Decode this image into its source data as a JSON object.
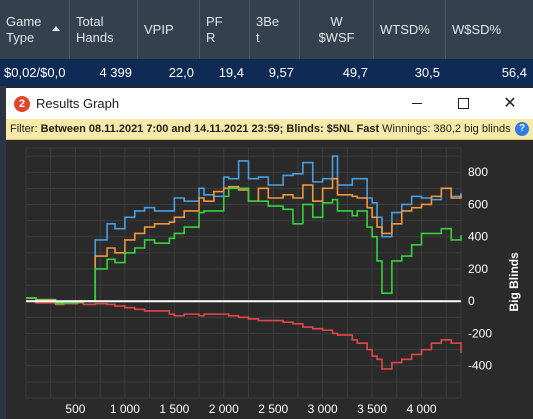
{
  "stats_table": {
    "headers": [
      "Game\nType",
      "Total\nHands",
      "VPIP",
      "PF\nR",
      "3Be\nt",
      "W\n$WSF",
      "WTSD%",
      "W$SD%"
    ],
    "row": [
      "$0,02/$0,0",
      "4 399",
      "22,0",
      "19,4",
      "9,57",
      "49,7",
      "30,5",
      "56,4"
    ]
  },
  "window": {
    "title": "Results Graph",
    "icon_letter": "2",
    "close_glyph": "✕"
  },
  "filter": {
    "label": "Filter:",
    "text": "Between 08.11.2021 7:00 and 14.11.2021 23:59; Blinds: $5NL Fast",
    "winnings": "Winnings: 380,2 big blinds",
    "help": "?"
  },
  "chart_data": {
    "type": "line",
    "xlabel": "",
    "ylabel": "Big Blinds",
    "xlim": [
      0,
      4399
    ],
    "ylim": [
      -600,
      950
    ],
    "x_ticks": [
      500,
      1000,
      1500,
      2000,
      2500,
      3000,
      3500,
      4000
    ],
    "x_tick_labels": [
      "500",
      "1 000",
      "1 500",
      "2 000",
      "2 500",
      "3 000",
      "3 500",
      "4 000"
    ],
    "y_ticks": [
      800,
      600,
      400,
      200,
      0,
      -200,
      -400
    ],
    "y_tick_labels": [
      "800",
      "600",
      "400",
      "200",
      "0",
      "-200",
      "-400"
    ],
    "grid": true,
    "colors": {
      "blue": "#4a9de0",
      "orange": "#f0963c",
      "green": "#36d23c",
      "red": "#e04848",
      "zero": "#ffffff"
    },
    "series": [
      {
        "color": "blue",
        "x": [
          0,
          100,
          300,
          380,
          520,
          580,
          700,
          820,
          900,
          1000,
          1100,
          1200,
          1300,
          1450,
          1500,
          1600,
          1750,
          1800,
          1900,
          2000,
          2050,
          2150,
          2250,
          2350,
          2450,
          2600,
          2700,
          2800,
          2900,
          3000,
          3100,
          3150,
          3300,
          3350,
          3450,
          3500,
          3550,
          3600,
          3700,
          3800,
          3900,
          4000,
          4100,
          4200,
          4300,
          4399
        ],
        "y": [
          20,
          10,
          -10,
          0,
          0,
          0,
          380,
          480,
          450,
          520,
          560,
          580,
          560,
          560,
          640,
          620,
          700,
          660,
          650,
          770,
          760,
          870,
          760,
          770,
          720,
          780,
          790,
          860,
          740,
          760,
          900,
          720,
          760,
          760,
          640,
          610,
          520,
          400,
          550,
          600,
          650,
          640,
          630,
          700,
          650,
          670
        ]
      },
      {
        "color": "orange",
        "x": [
          0,
          100,
          300,
          380,
          520,
          580,
          700,
          820,
          900,
          1000,
          1100,
          1200,
          1300,
          1450,
          1500,
          1600,
          1750,
          1800,
          1900,
          2000,
          2050,
          2150,
          2250,
          2350,
          2450,
          2600,
          2700,
          2800,
          2900,
          3000,
          3100,
          3150,
          3300,
          3350,
          3450,
          3500,
          3550,
          3600,
          3700,
          3800,
          3900,
          4000,
          4100,
          4200,
          4300,
          4399
        ],
        "y": [
          20,
          10,
          -10,
          -5,
          0,
          0,
          280,
          330,
          300,
          380,
          420,
          460,
          480,
          490,
          520,
          560,
          640,
          620,
          680,
          700,
          710,
          690,
          620,
          700,
          640,
          660,
          640,
          720,
          620,
          700,
          760,
          660,
          650,
          640,
          580,
          520,
          460,
          420,
          480,
          560,
          580,
          600,
          650,
          700,
          640,
          660
        ]
      },
      {
        "color": "green",
        "x": [
          0,
          100,
          300,
          380,
          520,
          580,
          700,
          820,
          900,
          1000,
          1100,
          1200,
          1300,
          1450,
          1500,
          1600,
          1750,
          1800,
          1900,
          2000,
          2050,
          2150,
          2250,
          2350,
          2450,
          2600,
          2700,
          2800,
          2900,
          3000,
          3100,
          3150,
          3300,
          3350,
          3450,
          3500,
          3550,
          3600,
          3700,
          3800,
          3900,
          4000,
          4100,
          4200,
          4300,
          4399
        ],
        "y": [
          20,
          5,
          -15,
          -10,
          -5,
          0,
          200,
          260,
          240,
          300,
          330,
          380,
          360,
          390,
          420,
          460,
          550,
          560,
          560,
          650,
          700,
          700,
          620,
          620,
          590,
          570,
          480,
          600,
          520,
          610,
          630,
          560,
          530,
          560,
          460,
          400,
          250,
          50,
          250,
          280,
          350,
          420,
          420,
          450,
          380,
          410
        ]
      },
      {
        "color": "red",
        "x": [
          0,
          100,
          300,
          380,
          520,
          580,
          700,
          820,
          900,
          1000,
          1100,
          1200,
          1300,
          1450,
          1500,
          1600,
          1750,
          1800,
          1900,
          2000,
          2050,
          2150,
          2250,
          2350,
          2450,
          2600,
          2700,
          2800,
          2900,
          3000,
          3100,
          3150,
          3300,
          3350,
          3450,
          3500,
          3550,
          3600,
          3700,
          3800,
          3900,
          4000,
          4100,
          4200,
          4300,
          4399
        ],
        "y": [
          0,
          -10,
          -20,
          -15,
          -10,
          -20,
          -15,
          -20,
          -30,
          -40,
          -50,
          -60,
          -60,
          -80,
          -90,
          -80,
          -90,
          -80,
          -80,
          -80,
          -90,
          -100,
          -110,
          -120,
          -120,
          -130,
          -140,
          -160,
          -170,
          -180,
          -200,
          -210,
          -240,
          -260,
          -300,
          -340,
          -360,
          -420,
          -380,
          -360,
          -330,
          -300,
          -260,
          -240,
          -260,
          -320
        ]
      }
    ]
  }
}
